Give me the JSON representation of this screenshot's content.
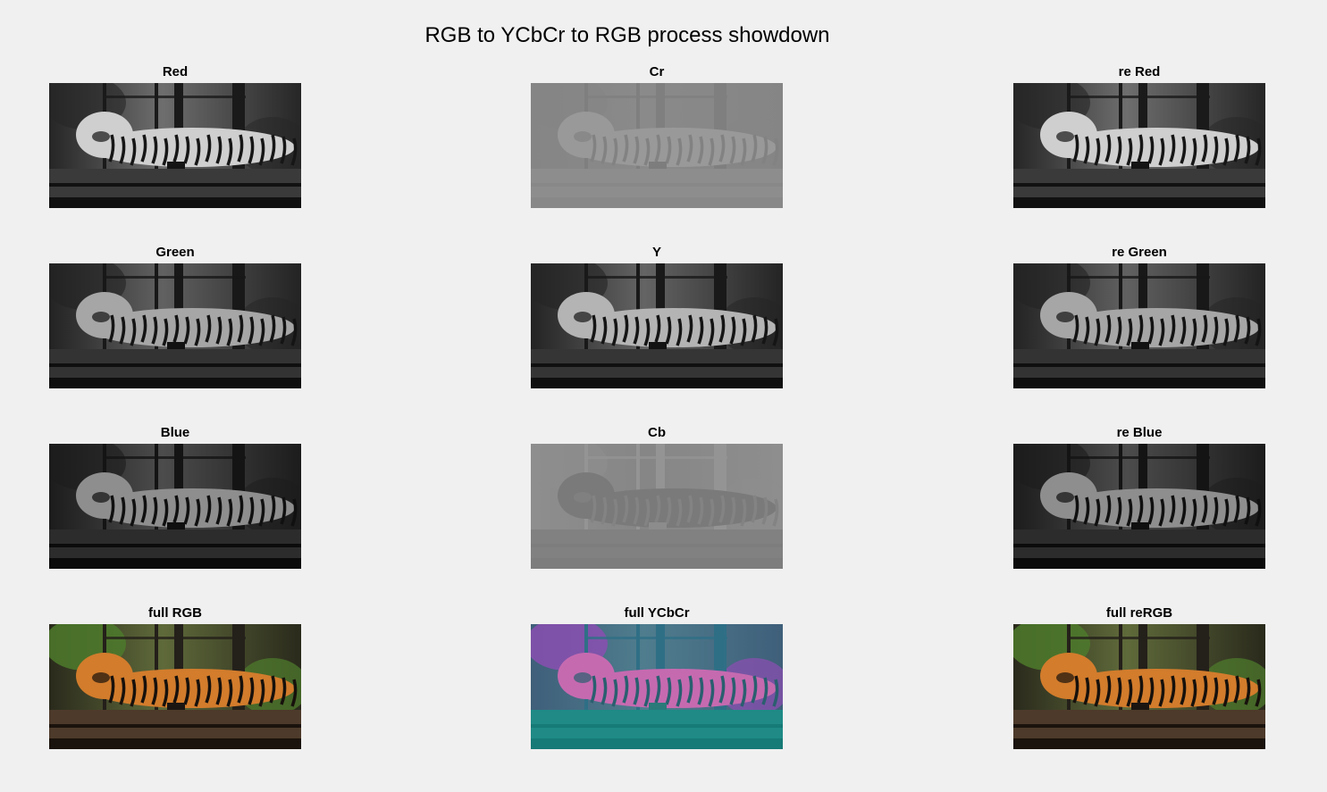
{
  "figure": {
    "title": "RGB to YCbCr to RGB process showdown"
  },
  "subplots": [
    {
      "title": "Red",
      "render": "gray",
      "tone": "red-channel"
    },
    {
      "title": "Cr",
      "render": "gray",
      "tone": "cr-channel"
    },
    {
      "title": "re Red",
      "render": "gray",
      "tone": "red-channel"
    },
    {
      "title": "Green",
      "render": "gray",
      "tone": "green-channel"
    },
    {
      "title": "Y",
      "render": "gray",
      "tone": "luma-channel"
    },
    {
      "title": "re Green",
      "render": "gray",
      "tone": "green-channel"
    },
    {
      "title": "Blue",
      "render": "gray",
      "tone": "blue-channel"
    },
    {
      "title": "Cb",
      "render": "gray",
      "tone": "cb-channel"
    },
    {
      "title": "re Blue",
      "render": "gray",
      "tone": "blue-channel"
    },
    {
      "title": "full RGB",
      "render": "color",
      "tone": "natural-color"
    },
    {
      "title": "full YCbCr",
      "render": "color",
      "tone": "ycbcr-false-color"
    },
    {
      "title": "full reRGB",
      "render": "color",
      "tone": "natural-color"
    }
  ],
  "palettes": {
    "red-channel": {
      "bg": "#6e6e6e",
      "bgDark": "#262626",
      "post": "#1a1a1a",
      "body": "#cfcfcf",
      "stripe": "#161616",
      "platform": "#3a3a3a",
      "platformDark": "#111111",
      "box": "#141414"
    },
    "green-channel": {
      "bg": "#616161",
      "bgDark": "#232323",
      "post": "#181818",
      "body": "#a6a6a6",
      "stripe": "#141414",
      "platform": "#333333",
      "platformDark": "#0f0f0f",
      "box": "#121212"
    },
    "blue-channel": {
      "bg": "#4c4c4c",
      "bgDark": "#1c1c1c",
      "post": "#141414",
      "body": "#8e8e8e",
      "stripe": "#101010",
      "platform": "#2c2c2c",
      "platformDark": "#0b0b0b",
      "box": "#0f0f0f"
    },
    "luma-channel": {
      "bg": "#646464",
      "bgDark": "#242424",
      "post": "#191919",
      "body": "#b4b4b4",
      "stripe": "#151515",
      "platform": "#353535",
      "platformDark": "#101010",
      "box": "#131313"
    },
    "cr-channel": {
      "bg": "#8a8a8a",
      "bgDark": "#858585",
      "post": "#7f7f7f",
      "body": "#999999",
      "stripe": "#828282",
      "platform": "#8d8d8d",
      "platformDark": "#888888",
      "box": "#7d7d7d"
    },
    "cb-channel": {
      "bg": "#868686",
      "bgDark": "#8e8e8e",
      "post": "#949494",
      "body": "#7a7a7a",
      "stripe": "#838383",
      "platform": "#818181",
      "platformDark": "#7d7d7d",
      "box": "#8c8c8c"
    },
    "natural-color": {
      "bg": "#5f6a3a",
      "bgDark": "#2a2a1c",
      "post": "#24201a",
      "body": "#d27c2c",
      "stripe": "#17110c",
      "platform": "#4d3a2a",
      "platformDark": "#1a120c",
      "box": "#1b1512",
      "foliage": "#4e7a2c"
    },
    "ycbcr-false-color": {
      "bg": "#4f7d8e",
      "bgDark": "#3f5f7a",
      "post": "#2f6f86",
      "body": "#c66ab0",
      "stripe": "#2a5f6f",
      "platform": "#1f8a86",
      "platformDark": "#167a76",
      "box": "#2a7a7a",
      "foliage": "#8a4fb0"
    }
  }
}
